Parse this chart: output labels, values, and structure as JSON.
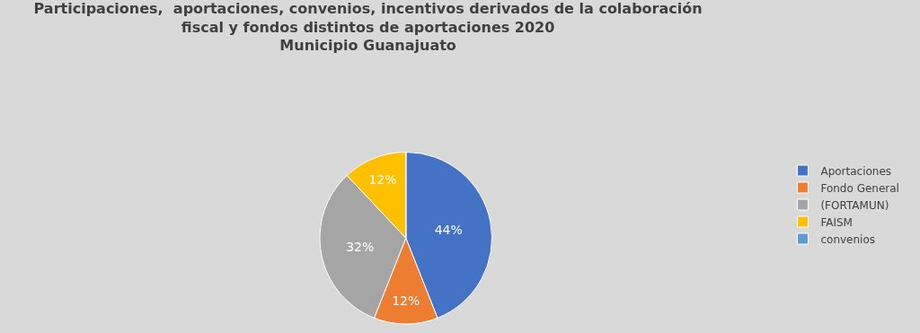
{
  "chart_data": {
    "type": "pie",
    "title": "Participaciones,  aportaciones, convenios, incentivos derivados de la colaboración\nfiscal y fondos distintos de aportaciones 2020\nMunicipio Guanajuato",
    "categories": [
      "Aportaciones",
      "Fondo General",
      "(FORTAMUN)",
      "FAISM",
      "convenios"
    ],
    "values": [
      44,
      12,
      32,
      12,
      0
    ],
    "colors": [
      "#4472c4",
      "#ed7d31",
      "#a5a5a5",
      "#ffc000",
      "#5b9bd5"
    ],
    "value_labels": [
      "44%",
      "12%",
      "32%",
      "12%",
      null
    ],
    "legend": "right"
  }
}
